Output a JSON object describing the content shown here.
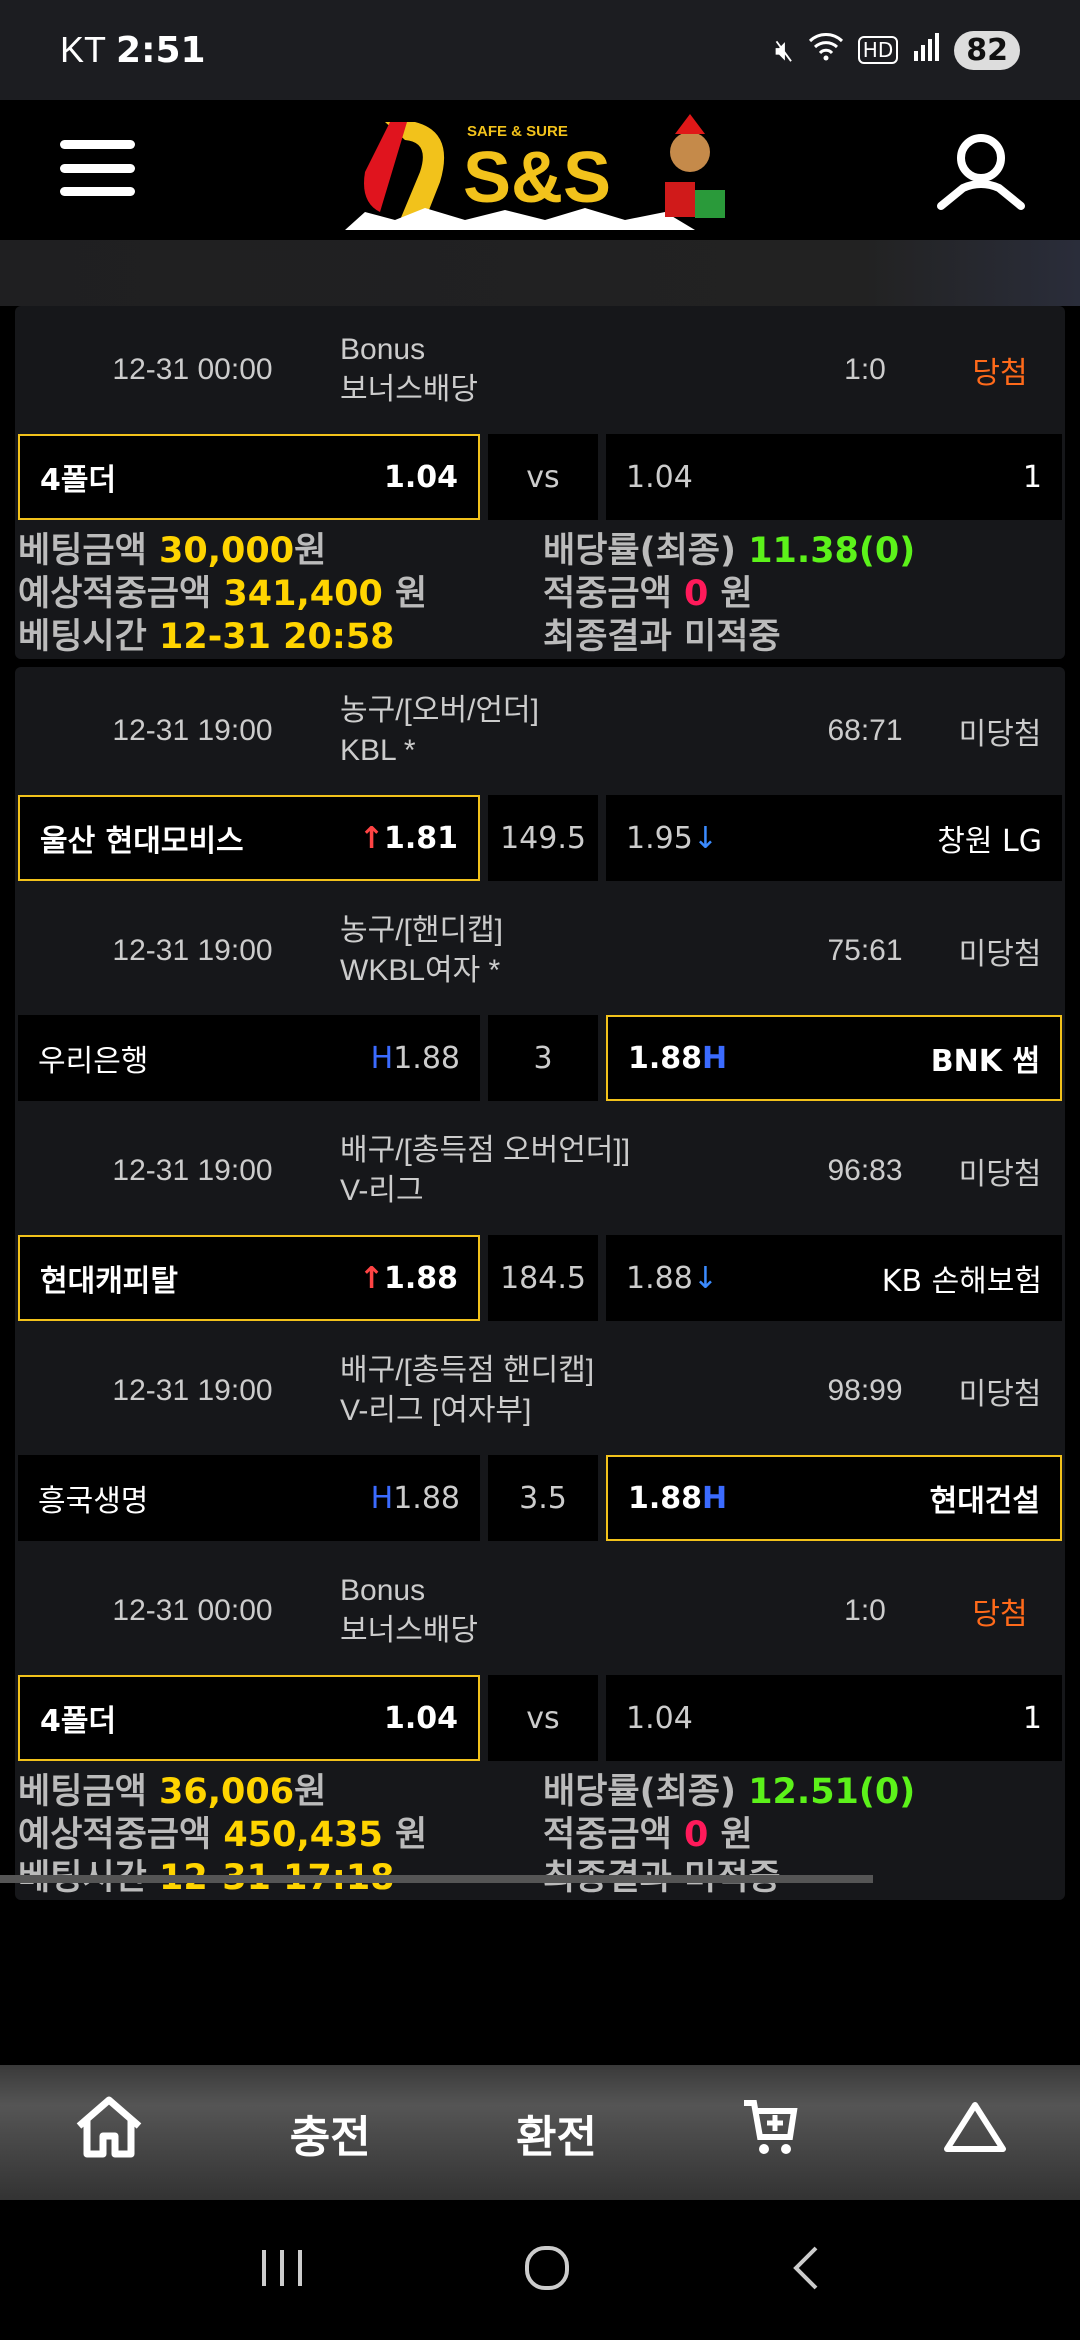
{
  "status_bar": {
    "carrier": "KT",
    "time": "2:51",
    "battery": "82",
    "icons": [
      "mute-icon",
      "wifi-icon",
      "hd-voice-icon",
      "signal-icon"
    ]
  },
  "header": {
    "logo_tagline": "SAFE & SURE",
    "logo_text": "S&S"
  },
  "colors": {
    "selected_border": "#f2c21b",
    "win": "#ff6a1a",
    "amount": "#ffd400",
    "odds_total": "#5cf21a",
    "hit_amount": "#ff1a5a"
  },
  "bets": [
    {
      "games": [
        {
          "date": "12-31 00:00",
          "league1": "Bonus",
          "league2": "보너스배당",
          "score": "1:0",
          "result": "당첨",
          "win": true,
          "home": "4폴더",
          "home_odds": "1.04",
          "mid": "vs",
          "away_odds": "1.04",
          "away": "1",
          "selected": "home"
        }
      ],
      "summary": {
        "amount_label": "베팅금액",
        "amount": "30,000",
        "won": "원",
        "odds_label": "배당률(최종)",
        "odds": "11.38(0)",
        "expected_label": "예상적중금액",
        "expected": "341,400",
        "won2": "원",
        "hit_label": "적중금액",
        "hit": "0",
        "won3": "원",
        "time_label": "베팅시간",
        "time": "12-31 20:58",
        "final_label": "최종결과",
        "final": "미적중"
      }
    },
    {
      "games": [
        {
          "date": "12-31 19:00",
          "league1": "농구/[오버/언더]",
          "league2": "KBL *",
          "score": "68:71",
          "result": "미당첨",
          "win": false,
          "home": "울산 현대모비스",
          "home_odds": "1.81",
          "home_mark": "↑",
          "mid": "149.5",
          "away_odds": "1.95",
          "away_mark": "↓",
          "away": "창원 LG",
          "selected": "home"
        },
        {
          "date": "12-31 19:00",
          "league1": "농구/[핸디캡]",
          "league2": "WKBL여자 *",
          "score": "75:61",
          "result": "미당첨",
          "win": false,
          "home": "우리은행",
          "home_odds": "1.88",
          "home_mark": "H",
          "mid": "3",
          "away_odds": "1.88",
          "away_mark": "H",
          "away": "BNK 썸",
          "selected": "away"
        },
        {
          "date": "12-31 19:00",
          "league1": "배구/[총득점 오버언더]]",
          "league2": "V-리그",
          "score": "96:83",
          "result": "미당첨",
          "win": false,
          "home": "현대캐피탈",
          "home_odds": "1.88",
          "home_mark": "↑",
          "mid": "184.5",
          "away_odds": "1.88",
          "away_mark": "↓",
          "away": "KB 손해보험",
          "selected": "home"
        },
        {
          "date": "12-31 19:00",
          "league1": "배구/[총득점 핸디캡]",
          "league2": "V-리그 [여자부]",
          "score": "98:99",
          "result": "미당첨",
          "win": false,
          "home": "흥국생명",
          "home_odds": "1.88",
          "home_mark": "H",
          "mid": "3.5",
          "away_odds": "1.88",
          "away_mark": "H",
          "away": "현대건설",
          "selected": "away"
        },
        {
          "date": "12-31 00:00",
          "league1": "Bonus",
          "league2": "보너스배당",
          "score": "1:0",
          "result": "당첨",
          "win": true,
          "home": "4폴더",
          "home_odds": "1.04",
          "mid": "vs",
          "away_odds": "1.04",
          "away": "1",
          "selected": "home"
        }
      ],
      "summary": {
        "amount_label": "베팅금액",
        "amount": "36,006",
        "won": "원",
        "odds_label": "배당률(최종)",
        "odds": "12.51(0)",
        "expected_label": "예상적중금액",
        "expected": "450,435",
        "won2": "원",
        "hit_label": "적중금액",
        "hit": "0",
        "won3": "원",
        "time_label": "베팅시간",
        "time": "12-31 17:18",
        "final_label": "최종결과",
        "final": "미적중"
      }
    }
  ],
  "bottom_nav": {
    "home_icon": "home-icon",
    "charge": "충전",
    "exchange": "환전",
    "cart_icon": "cart-plus-icon",
    "top_icon": "scroll-top-triangle-icon"
  },
  "system_nav": [
    "recent-apps-icon",
    "home-circle-icon",
    "back-icon"
  ]
}
